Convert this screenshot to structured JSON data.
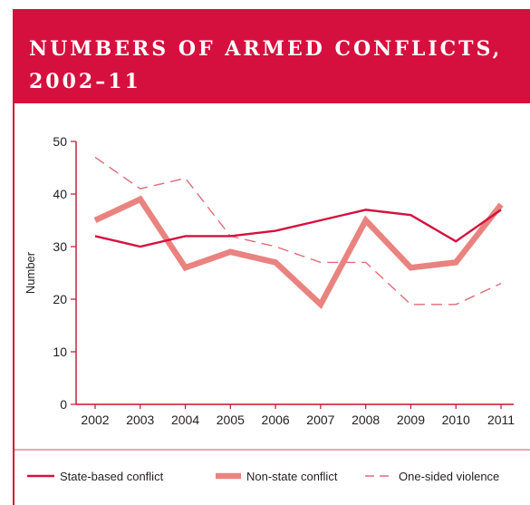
{
  "header": {
    "title": "NUMBERS OF ARMED CONFLICTS, 2002–11"
  },
  "colors": {
    "brand": "#d5103f",
    "state": "#d5103f",
    "nonstate": "#e9837f",
    "onesided": "#e06b78",
    "axis": "#c8102e"
  },
  "chart_data": {
    "type": "line",
    "title": "NUMBERS OF ARMED CONFLICTS, 2002–11",
    "xlabel": "",
    "ylabel": "Number",
    "x": [
      "2002",
      "2003",
      "2004",
      "2005",
      "2006",
      "2007",
      "2008",
      "2009",
      "2010",
      "2011"
    ],
    "ylim": [
      0,
      50
    ],
    "yticks": [
      0,
      10,
      20,
      30,
      40,
      50
    ],
    "grid": false,
    "legend_position": "bottom",
    "series": [
      {
        "name": "State-based conflict",
        "style": "solid",
        "values": [
          32,
          30,
          32,
          32,
          33,
          35,
          37,
          36,
          31,
          37
        ]
      },
      {
        "name": "Non-state conflict",
        "style": "thick",
        "values": [
          35,
          39,
          26,
          29,
          27,
          19,
          35,
          26,
          27,
          38
        ]
      },
      {
        "name": "One-sided violence",
        "style": "dashed",
        "values": [
          47,
          41,
          43,
          32,
          30,
          27,
          27,
          19,
          19,
          23
        ]
      }
    ]
  }
}
